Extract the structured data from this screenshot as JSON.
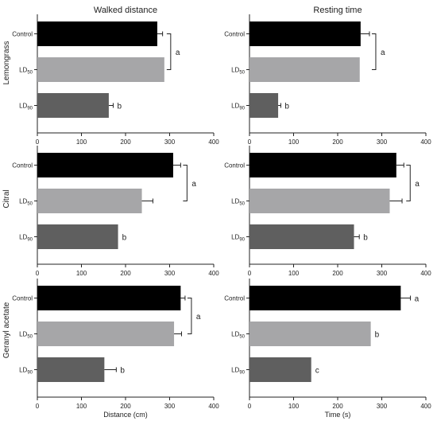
{
  "column_titles": [
    "Walked distance",
    "Resting time"
  ],
  "row_labels": [
    "Lemongrass",
    "Citral",
    "Geranyl acetate"
  ],
  "xlabels": [
    "Distance (cm)",
    "Time (s)"
  ],
  "colors": {
    "Control": "#000000",
    "LD50": "#a6a6a8",
    "LD90": "#5f5f5f",
    "axis": "#222222"
  },
  "chart_data": [
    {
      "type": "bar",
      "orientation": "horizontal",
      "row": "Lemongrass",
      "title": "Walked distance",
      "categories": [
        "Control",
        "LD50",
        "LD90"
      ],
      "values": [
        272,
        288,
        162
      ],
      "errors": [
        12,
        0,
        10
      ],
      "xlim": [
        0,
        400
      ],
      "xticks": [
        0,
        100,
        200,
        300,
        400
      ],
      "letters": [
        {
          "text": "a",
          "span": [
            0,
            1
          ]
        },
        {
          "text": "b",
          "span": [
            2,
            2
          ]
        }
      ]
    },
    {
      "type": "bar",
      "orientation": "horizontal",
      "row": "Lemongrass",
      "title": "Resting time",
      "categories": [
        "Control",
        "LD50",
        "LD90"
      ],
      "values": [
        252,
        250,
        65
      ],
      "errors": [
        20,
        0,
        6
      ],
      "xlim": [
        0,
        400
      ],
      "xticks": [
        0,
        100,
        200,
        300,
        400
      ],
      "letters": [
        {
          "text": "a",
          "span": [
            0,
            1
          ]
        },
        {
          "text": "b",
          "span": [
            2,
            2
          ]
        }
      ]
    },
    {
      "type": "bar",
      "orientation": "horizontal",
      "row": "Citral",
      "title": "",
      "categories": [
        "Control",
        "LD50",
        "LD90"
      ],
      "values": [
        308,
        237,
        183
      ],
      "errors": [
        17,
        25,
        0
      ],
      "xlim": [
        0,
        400
      ],
      "xticks": [
        0,
        100,
        200,
        300,
        400
      ],
      "letters": [
        {
          "text": "a",
          "span": [
            0,
            1
          ]
        },
        {
          "text": "b",
          "span": [
            2,
            2
          ]
        }
      ]
    },
    {
      "type": "bar",
      "orientation": "horizontal",
      "row": "Citral",
      "title": "",
      "categories": [
        "Control",
        "LD50",
        "LD90"
      ],
      "values": [
        333,
        318,
        237
      ],
      "errors": [
        17,
        28,
        12
      ],
      "xlim": [
        0,
        400
      ],
      "xticks": [
        0,
        100,
        200,
        300,
        400
      ],
      "letters": [
        {
          "text": "a",
          "span": [
            0,
            1
          ]
        },
        {
          "text": "b",
          "span": [
            2,
            2
          ]
        }
      ]
    },
    {
      "type": "bar",
      "orientation": "horizontal",
      "row": "Geranyl acetate",
      "title": "Distance (cm)",
      "categories": [
        "Control",
        "LD50",
        "LD90"
      ],
      "values": [
        325,
        310,
        152
      ],
      "errors": [
        10,
        17,
        27
      ],
      "xlim": [
        0,
        400
      ],
      "xticks": [
        0,
        100,
        200,
        300,
        400
      ],
      "letters": [
        {
          "text": "a",
          "span": [
            0,
            1
          ]
        },
        {
          "text": "b",
          "span": [
            2,
            2
          ]
        }
      ]
    },
    {
      "type": "bar",
      "orientation": "horizontal",
      "row": "Geranyl acetate",
      "title": "Time (s)",
      "categories": [
        "Control",
        "LD50",
        "LD90"
      ],
      "values": [
        343,
        275,
        140
      ],
      "errors": [
        22,
        0,
        0
      ],
      "xlim": [
        0,
        400
      ],
      "xticks": [
        0,
        100,
        200,
        300,
        400
      ],
      "letters": [
        {
          "text": "a",
          "span": [
            0,
            0
          ]
        },
        {
          "text": "b",
          "span": [
            1,
            1
          ]
        },
        {
          "text": "c",
          "span": [
            2,
            2
          ]
        }
      ]
    }
  ]
}
